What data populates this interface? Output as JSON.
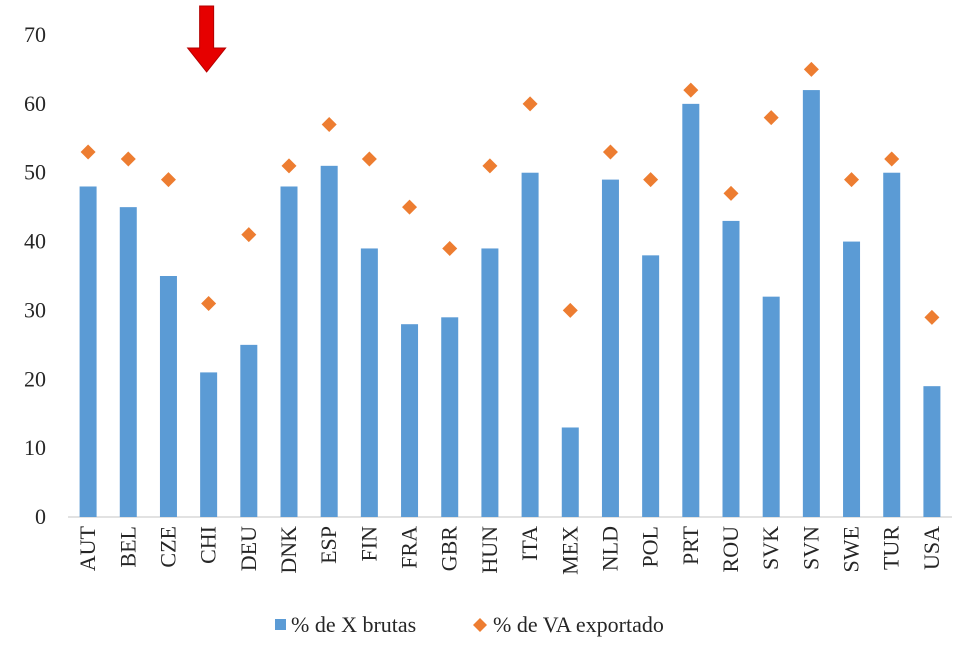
{
  "chart_data": {
    "type": "bar",
    "categories": [
      "AUT",
      "BEL",
      "CZE",
      "CHI",
      "DEU",
      "DNK",
      "ESP",
      "FIN",
      "FRA",
      "GBR",
      "HUN",
      "ITA",
      "MEX",
      "NLD",
      "POL",
      "PRT",
      "ROU",
      "SVK",
      "SVN",
      "SWE",
      "TUR",
      "USA"
    ],
    "series": [
      {
        "name": "% de X brutas",
        "type": "bar",
        "color": "#5B9BD5",
        "values": [
          48,
          45,
          35,
          21,
          25,
          48,
          51,
          39,
          28,
          29,
          39,
          50,
          13,
          49,
          38,
          60,
          43,
          32,
          62,
          40,
          50,
          19
        ]
      },
      {
        "name": "% de VA exportado",
        "type": "scatter",
        "marker": "diamond",
        "color": "#ED7D31",
        "values": [
          53,
          52,
          49,
          31,
          41,
          51,
          57,
          52,
          45,
          39,
          51,
          60,
          30,
          53,
          49,
          62,
          47,
          58,
          65,
          49,
          52,
          29
        ]
      }
    ],
    "yticks": [
      "0",
      "10",
      "20",
      "30",
      "40",
      "50",
      "60",
      "70"
    ],
    "ylim": [
      0,
      70
    ],
    "grid": false,
    "legend": "bottom",
    "annotation": {
      "type": "arrow-down",
      "target_category": "CHI",
      "color": "#E60000"
    }
  }
}
